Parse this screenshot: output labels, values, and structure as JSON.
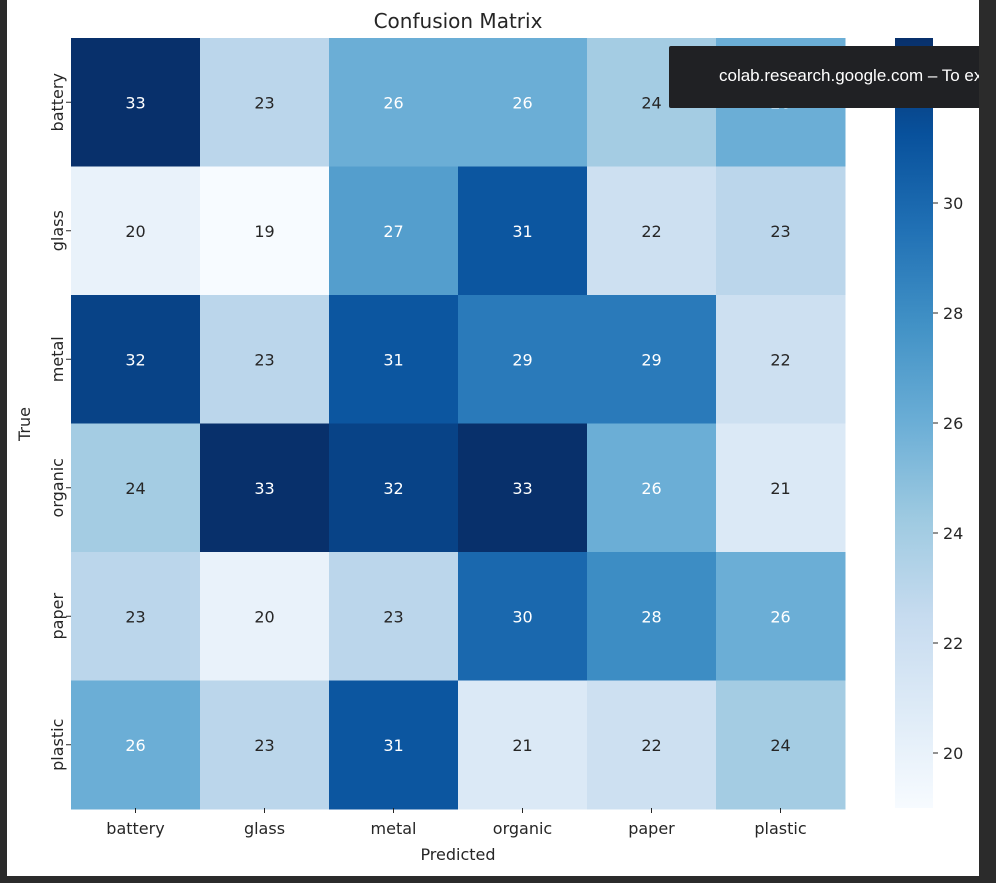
{
  "chart_data": {
    "type": "heatmap",
    "title": "Confusion Matrix",
    "xlabel": "Predicted",
    "ylabel": "True",
    "x_categories": [
      "battery",
      "glass",
      "metal",
      "organic",
      "paper",
      "plastic"
    ],
    "y_categories": [
      "battery",
      "glass",
      "metal",
      "organic",
      "paper",
      "plastic"
    ],
    "values": [
      [
        33,
        23,
        26,
        26,
        24,
        26
      ],
      [
        20,
        19,
        27,
        31,
        22,
        23
      ],
      [
        32,
        23,
        31,
        29,
        29,
        22
      ],
      [
        24,
        33,
        32,
        33,
        26,
        21
      ],
      [
        23,
        20,
        23,
        30,
        28,
        26
      ],
      [
        26,
        23,
        31,
        21,
        22,
        24
      ]
    ],
    "colormap": "Blues",
    "colorbar": {
      "range": [
        19,
        33
      ],
      "ticks": [
        20,
        22,
        24,
        26,
        28,
        30
      ],
      "tick_labels": [
        "20",
        "22",
        "24",
        "26",
        "28",
        "30"
      ]
    },
    "annot": true,
    "grid": false
  },
  "toast": {
    "text": "colab.research.google.com – To exit full screen, press Esc"
  }
}
